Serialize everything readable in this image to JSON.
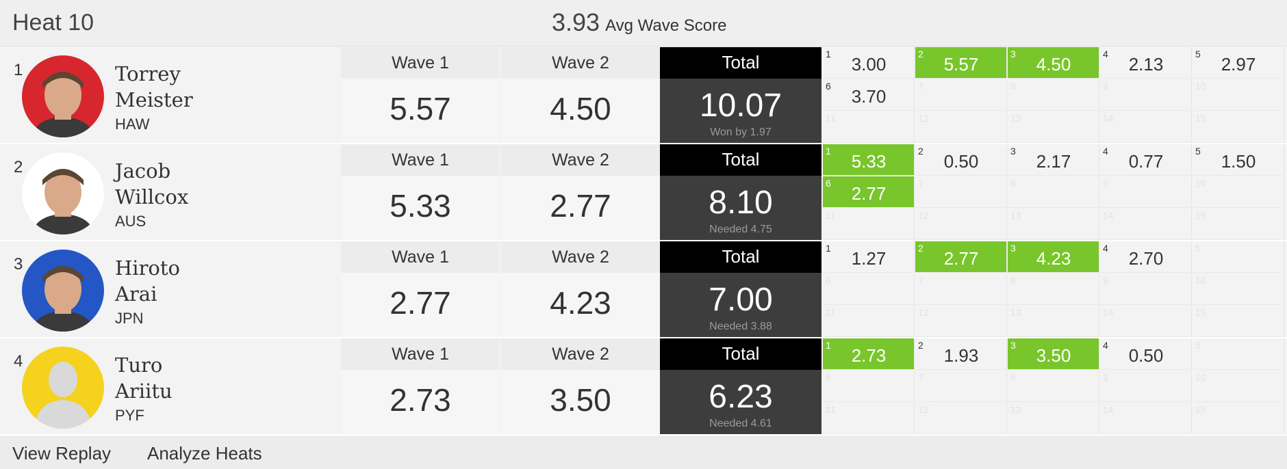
{
  "header": {
    "heat_title": "Heat 10",
    "avg_score": "3.93",
    "avg_label": "Avg Wave Score"
  },
  "colors": {
    "highlight": "#78c62b",
    "total_header": "#000000",
    "total_body": "#3d3d3d"
  },
  "athletes": [
    {
      "rank": "1",
      "first": "Torrey",
      "last": "Meister",
      "country": "HAW",
      "avatar_bg": "#d8262e",
      "avatar": "surfer-photo",
      "wave1_label": "Wave 1",
      "wave1": "5.57",
      "wave2_label": "Wave 2",
      "wave2": "4.50",
      "total_label": "Total",
      "total": "10.07",
      "status": "Won by 1.97",
      "waves": [
        {
          "n": "1",
          "s": "3.00",
          "hl": false
        },
        {
          "n": "2",
          "s": "5.57",
          "hl": true
        },
        {
          "n": "3",
          "s": "4.50",
          "hl": true
        },
        {
          "n": "4",
          "s": "2.13",
          "hl": false
        },
        {
          "n": "5",
          "s": "2.97",
          "hl": false
        },
        {
          "n": "6",
          "s": "3.70",
          "hl": false
        },
        {
          "n": "7",
          "s": "",
          "hl": false
        },
        {
          "n": "8",
          "s": "",
          "hl": false
        },
        {
          "n": "9",
          "s": "",
          "hl": false
        },
        {
          "n": "10",
          "s": "",
          "hl": false
        },
        {
          "n": "11",
          "s": "",
          "hl": false
        },
        {
          "n": "12",
          "s": "",
          "hl": false
        },
        {
          "n": "13",
          "s": "",
          "hl": false
        },
        {
          "n": "14",
          "s": "",
          "hl": false
        },
        {
          "n": "15",
          "s": "",
          "hl": false
        }
      ]
    },
    {
      "rank": "2",
      "first": "Jacob",
      "last": "Willcox",
      "country": "AUS",
      "avatar_bg": "#ffffff",
      "avatar": "surfer-photo",
      "wave1_label": "Wave 1",
      "wave1": "5.33",
      "wave2_label": "Wave 2",
      "wave2": "2.77",
      "total_label": "Total",
      "total": "8.10",
      "status": "Needed 4.75",
      "waves": [
        {
          "n": "1",
          "s": "5.33",
          "hl": true
        },
        {
          "n": "2",
          "s": "0.50",
          "hl": false
        },
        {
          "n": "3",
          "s": "2.17",
          "hl": false
        },
        {
          "n": "4",
          "s": "0.77",
          "hl": false
        },
        {
          "n": "5",
          "s": "1.50",
          "hl": false
        },
        {
          "n": "6",
          "s": "2.77",
          "hl": true
        },
        {
          "n": "7",
          "s": "",
          "hl": false
        },
        {
          "n": "8",
          "s": "",
          "hl": false
        },
        {
          "n": "9",
          "s": "",
          "hl": false
        },
        {
          "n": "10",
          "s": "",
          "hl": false
        },
        {
          "n": "11",
          "s": "",
          "hl": false
        },
        {
          "n": "12",
          "s": "",
          "hl": false
        },
        {
          "n": "13",
          "s": "",
          "hl": false
        },
        {
          "n": "14",
          "s": "",
          "hl": false
        },
        {
          "n": "15",
          "s": "",
          "hl": false
        }
      ]
    },
    {
      "rank": "3",
      "first": "Hiroto",
      "last": "Arai",
      "country": "JPN",
      "avatar_bg": "#2457c5",
      "avatar": "surfer-photo",
      "wave1_label": "Wave 1",
      "wave1": "2.77",
      "wave2_label": "Wave 2",
      "wave2": "4.23",
      "total_label": "Total",
      "total": "7.00",
      "status": "Needed 3.88",
      "waves": [
        {
          "n": "1",
          "s": "1.27",
          "hl": false
        },
        {
          "n": "2",
          "s": "2.77",
          "hl": true
        },
        {
          "n": "3",
          "s": "4.23",
          "hl": true
        },
        {
          "n": "4",
          "s": "2.70",
          "hl": false
        },
        {
          "n": "5",
          "s": "",
          "hl": false
        },
        {
          "n": "6",
          "s": "",
          "hl": false
        },
        {
          "n": "7",
          "s": "",
          "hl": false
        },
        {
          "n": "8",
          "s": "",
          "hl": false
        },
        {
          "n": "9",
          "s": "",
          "hl": false
        },
        {
          "n": "10",
          "s": "",
          "hl": false
        },
        {
          "n": "11",
          "s": "",
          "hl": false
        },
        {
          "n": "12",
          "s": "",
          "hl": false
        },
        {
          "n": "13",
          "s": "",
          "hl": false
        },
        {
          "n": "14",
          "s": "",
          "hl": false
        },
        {
          "n": "15",
          "s": "",
          "hl": false
        }
      ]
    },
    {
      "rank": "4",
      "first": "Turo",
      "last": "Ariitu",
      "country": "PYF",
      "avatar_bg": "#f5d21d",
      "avatar": "placeholder-silhouette",
      "wave1_label": "Wave 1",
      "wave1": "2.73",
      "wave2_label": "Wave 2",
      "wave2": "3.50",
      "total_label": "Total",
      "total": "6.23",
      "status": "Needed 4.61",
      "waves": [
        {
          "n": "1",
          "s": "2.73",
          "hl": true
        },
        {
          "n": "2",
          "s": "1.93",
          "hl": false
        },
        {
          "n": "3",
          "s": "3.50",
          "hl": true
        },
        {
          "n": "4",
          "s": "0.50",
          "hl": false
        },
        {
          "n": "5",
          "s": "",
          "hl": false
        },
        {
          "n": "6",
          "s": "",
          "hl": false
        },
        {
          "n": "7",
          "s": "",
          "hl": false
        },
        {
          "n": "8",
          "s": "",
          "hl": false
        },
        {
          "n": "9",
          "s": "",
          "hl": false
        },
        {
          "n": "10",
          "s": "",
          "hl": false
        },
        {
          "n": "11",
          "s": "",
          "hl": false
        },
        {
          "n": "12",
          "s": "",
          "hl": false
        },
        {
          "n": "13",
          "s": "",
          "hl": false
        },
        {
          "n": "14",
          "s": "",
          "hl": false
        },
        {
          "n": "15",
          "s": "",
          "hl": false
        }
      ]
    }
  ],
  "footer": {
    "replay": "View Replay",
    "analyze": "Analyze Heats"
  }
}
